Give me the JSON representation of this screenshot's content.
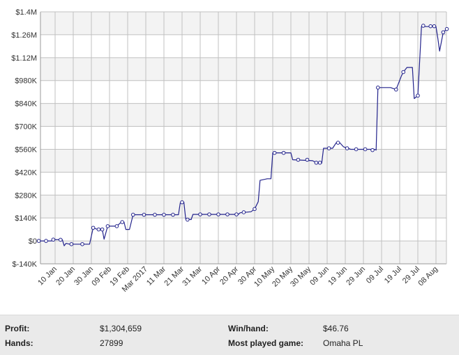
{
  "colors": {
    "line": "#23238c",
    "marker_fill": "#ffffff",
    "band_alt": "#f3f3f3",
    "grid": "#c0c0c0",
    "axis": "#999999",
    "stats_bg": "#eaeaea"
  },
  "chart_data": {
    "type": "line",
    "title": "",
    "xlabel": "",
    "ylabel": "",
    "x_axis": "date",
    "ylim": [
      -140000,
      1400000
    ],
    "y_ticks": [
      -140000,
      0,
      140000,
      280000,
      420000,
      560000,
      700000,
      840000,
      980000,
      1120000,
      1260000,
      1400000
    ],
    "y_tick_labels": [
      "$-140K",
      "$0",
      "$140K",
      "$280K",
      "$420K",
      "$560K",
      "$700K",
      "$840K",
      "$980K",
      "$1.12M",
      "$1.26M",
      "$1.4M"
    ],
    "x_ticks": [
      "2017-01-10",
      "2017-01-20",
      "2017-01-30",
      "2017-02-09",
      "2017-02-19",
      "2017-03-01",
      "2017-03-11",
      "2017-03-21",
      "2017-03-31",
      "2017-04-10",
      "2017-04-20",
      "2017-04-30",
      "2017-05-10",
      "2017-05-20",
      "2017-05-30",
      "2017-06-09",
      "2017-06-19",
      "2017-06-29",
      "2017-07-09",
      "2017-07-19",
      "2017-07-29",
      "2017-08-08"
    ],
    "x_tick_labels": [
      "10 Jan",
      "20 Jan",
      "30 Jan",
      "09 Feb",
      "19 Feb",
      "Mar 2017",
      "11 Mar",
      "21 Mar",
      "31 Mar",
      "10 Apr",
      "20 Apr",
      "30 Apr",
      "10 May",
      "20 May",
      "30 May",
      "09 Jun",
      "19 Jun",
      "29 Jun",
      "09 Jul",
      "19 Jul",
      "29 Jul",
      "08 Aug"
    ],
    "grid": true,
    "legend": "none",
    "series": [
      {
        "markers": [
          {
            "x": "2017-01-01",
            "y": 0
          },
          {
            "x": "2017-01-05",
            "y": 0
          },
          {
            "x": "2017-01-09",
            "y": 8000
          },
          {
            "x": "2017-01-13",
            "y": 7000
          },
          {
            "x": "2017-01-19",
            "y": -20000
          },
          {
            "x": "2017-01-25",
            "y": -20000
          },
          {
            "x": "2017-01-31",
            "y": 80000
          },
          {
            "x": "2017-02-03",
            "y": 70000
          },
          {
            "x": "2017-02-05",
            "y": 70000
          },
          {
            "x": "2017-02-08",
            "y": 90000
          },
          {
            "x": "2017-02-13",
            "y": 90000
          },
          {
            "x": "2017-02-16",
            "y": 115000
          },
          {
            "x": "2017-02-22",
            "y": 160000
          },
          {
            "x": "2017-02-28",
            "y": 160000
          },
          {
            "x": "2017-03-06",
            "y": 160000
          },
          {
            "x": "2017-03-11",
            "y": 160000
          },
          {
            "x": "2017-03-16",
            "y": 160000
          },
          {
            "x": "2017-03-21",
            "y": 236000
          },
          {
            "x": "2017-03-24",
            "y": 130000
          },
          {
            "x": "2017-03-31",
            "y": 162000
          },
          {
            "x": "2017-04-05",
            "y": 162000
          },
          {
            "x": "2017-04-10",
            "y": 162000
          },
          {
            "x": "2017-04-15",
            "y": 162000
          },
          {
            "x": "2017-04-20",
            "y": 162000
          },
          {
            "x": "2017-04-24",
            "y": 175000
          },
          {
            "x": "2017-04-30",
            "y": 195000
          },
          {
            "x": "2017-05-11",
            "y": 538000
          },
          {
            "x": "2017-05-16",
            "y": 538000
          },
          {
            "x": "2017-05-24",
            "y": 496000
          },
          {
            "x": "2017-05-29",
            "y": 496000
          },
          {
            "x": "2017-06-03",
            "y": 478000
          },
          {
            "x": "2017-06-05",
            "y": 478000
          },
          {
            "x": "2017-06-10",
            "y": 566000
          },
          {
            "x": "2017-06-15",
            "y": 600000
          },
          {
            "x": "2017-06-20",
            "y": 566000
          },
          {
            "x": "2017-06-25",
            "y": 560000
          },
          {
            "x": "2017-06-30",
            "y": 560000
          },
          {
            "x": "2017-07-04",
            "y": 555000
          },
          {
            "x": "2017-07-07",
            "y": 937000
          },
          {
            "x": "2017-07-17",
            "y": 925000
          },
          {
            "x": "2017-07-21",
            "y": 1032000
          },
          {
            "x": "2017-07-29",
            "y": 888000
          },
          {
            "x": "2017-08-01",
            "y": 1315000
          },
          {
            "x": "2017-08-05",
            "y": 1312000
          },
          {
            "x": "2017-08-07",
            "y": 1312000
          },
          {
            "x": "2017-08-12",
            "y": 1275000
          },
          {
            "x": "2017-08-14",
            "y": 1295000
          }
        ],
        "line": [
          {
            "x": "2017-01-01",
            "y": 0
          },
          {
            "x": "2017-01-08",
            "y": 0
          },
          {
            "x": "2017-01-09",
            "y": 8000
          },
          {
            "x": "2017-01-14",
            "y": 7000
          },
          {
            "x": "2017-01-15",
            "y": -30000
          },
          {
            "x": "2017-01-16",
            "y": -15000
          },
          {
            "x": "2017-01-18",
            "y": -20000
          },
          {
            "x": "2017-01-29",
            "y": -20000
          },
          {
            "x": "2017-01-31",
            "y": 80000
          },
          {
            "x": "2017-02-02",
            "y": 72000
          },
          {
            "x": "2017-02-05",
            "y": 70000
          },
          {
            "x": "2017-02-06",
            "y": 10000
          },
          {
            "x": "2017-02-08",
            "y": 90000
          },
          {
            "x": "2017-02-13",
            "y": 90000
          },
          {
            "x": "2017-02-15",
            "y": 110000
          },
          {
            "x": "2017-02-17",
            "y": 115000
          },
          {
            "x": "2017-02-18",
            "y": 70000
          },
          {
            "x": "2017-02-20",
            "y": 70000
          },
          {
            "x": "2017-02-22",
            "y": 160000
          },
          {
            "x": "2017-03-19",
            "y": 160000
          },
          {
            "x": "2017-03-20",
            "y": 232000
          },
          {
            "x": "2017-03-22",
            "y": 236000
          },
          {
            "x": "2017-03-23",
            "y": 135000
          },
          {
            "x": "2017-03-26",
            "y": 130000
          },
          {
            "x": "2017-03-27",
            "y": 162000
          },
          {
            "x": "2017-04-21",
            "y": 162000
          },
          {
            "x": "2017-04-22",
            "y": 172000
          },
          {
            "x": "2017-04-28",
            "y": 178000
          },
          {
            "x": "2017-04-30",
            "y": 195000
          },
          {
            "x": "2017-05-02",
            "y": 240000
          },
          {
            "x": "2017-05-03",
            "y": 370000
          },
          {
            "x": "2017-05-07",
            "y": 380000
          },
          {
            "x": "2017-05-09",
            "y": 380000
          },
          {
            "x": "2017-05-10",
            "y": 538000
          },
          {
            "x": "2017-05-20",
            "y": 538000
          },
          {
            "x": "2017-05-21",
            "y": 496000
          },
          {
            "x": "2017-06-01",
            "y": 490000
          },
          {
            "x": "2017-06-03",
            "y": 478000
          },
          {
            "x": "2017-06-06",
            "y": 475000
          },
          {
            "x": "2017-06-07",
            "y": 566000
          },
          {
            "x": "2017-06-12",
            "y": 566000
          },
          {
            "x": "2017-06-14",
            "y": 600000
          },
          {
            "x": "2017-06-16",
            "y": 600000
          },
          {
            "x": "2017-06-18",
            "y": 575000
          },
          {
            "x": "2017-06-22",
            "y": 560000
          },
          {
            "x": "2017-07-05",
            "y": 560000
          },
          {
            "x": "2017-07-06",
            "y": 555000
          },
          {
            "x": "2017-07-07",
            "y": 937000
          },
          {
            "x": "2017-07-14",
            "y": 937000
          },
          {
            "x": "2017-07-17",
            "y": 925000
          },
          {
            "x": "2017-07-20",
            "y": 1010000
          },
          {
            "x": "2017-07-21",
            "y": 1032000
          },
          {
            "x": "2017-07-23",
            "y": 1060000
          },
          {
            "x": "2017-07-26",
            "y": 1060000
          },
          {
            "x": "2017-07-27",
            "y": 870000
          },
          {
            "x": "2017-07-29",
            "y": 888000
          },
          {
            "x": "2017-07-31",
            "y": 1310000
          },
          {
            "x": "2017-08-08",
            "y": 1310000
          },
          {
            "x": "2017-08-09",
            "y": 1240000
          },
          {
            "x": "2017-08-10",
            "y": 1160000
          },
          {
            "x": "2017-08-12",
            "y": 1275000
          },
          {
            "x": "2017-08-14",
            "y": 1295000
          }
        ]
      }
    ]
  },
  "stats": {
    "profit_label": "Profit:",
    "profit_value": "$1,304,659",
    "hands_label": "Hands:",
    "hands_value": "27899",
    "winhand_label": "Win/hand:",
    "winhand_value": "$46.76",
    "game_label": "Most played game:",
    "game_value": "Omaha PL"
  }
}
